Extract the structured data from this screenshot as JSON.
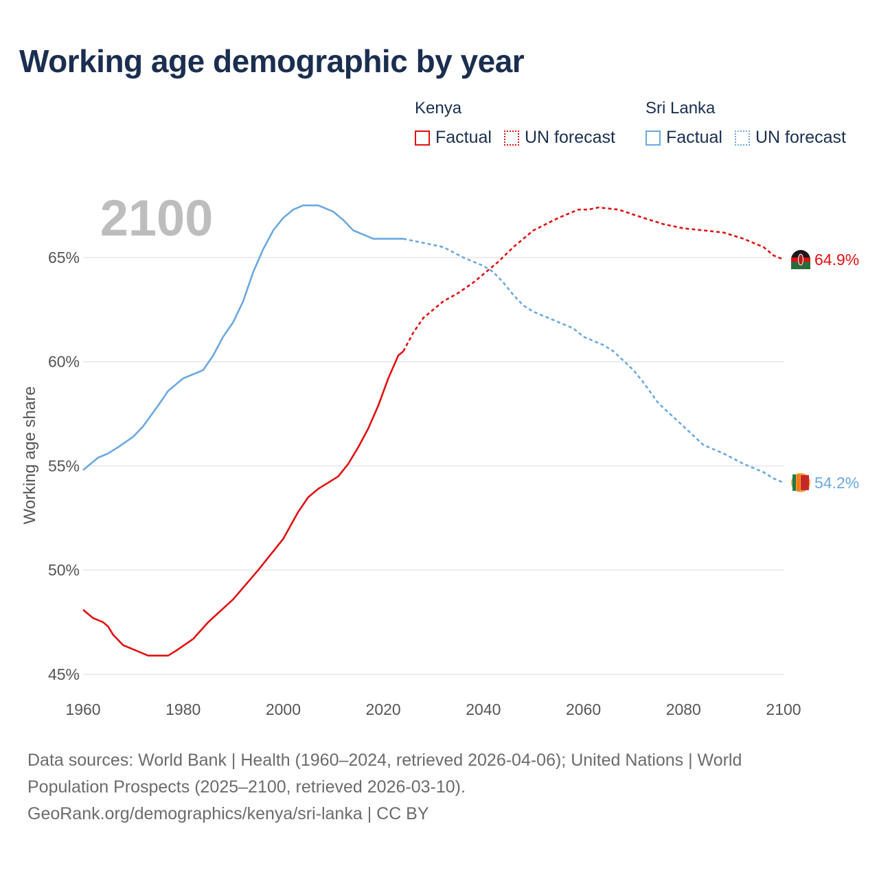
{
  "title": "Working age demographic by year",
  "legend": {
    "kenya": {
      "country": "Kenya",
      "factual": "Factual",
      "forecast": "UN forecast"
    },
    "srilanka": {
      "country": "Sri Lanka",
      "factual": "Factual",
      "forecast": "UN forecast"
    }
  },
  "footer": {
    "line1": "Data sources: World Bank | Health (1960–2024, retrieved 2026-04-06); United Nations | World",
    "line2": "Population Prospects (2025–2100, retrieved 2026-03-10).",
    "line3": "GeoRank.org/demographics/kenya/sri-lanka | CC BY"
  },
  "colors": {
    "kenya": "#e01010",
    "srilanka": "#6aa8e0",
    "grid": "#e6e6e6",
    "axisText": "#555555",
    "yearWatermark": "#bdbdbd"
  },
  "chart_data": {
    "type": "line",
    "title": "Working age demographic by year",
    "xlabel": "",
    "ylabel": "Working age share",
    "year_label": "2100",
    "xlim": [
      1960,
      2100
    ],
    "ylim": [
      45,
      67.8
    ],
    "x_ticks": [
      1960,
      1980,
      2000,
      2020,
      2040,
      2060,
      2080,
      2100
    ],
    "y_ticks": [
      {
        "value": 45,
        "label": "45%"
      },
      {
        "value": 50,
        "label": "50%"
      },
      {
        "value": 55,
        "label": "55%"
      },
      {
        "value": 60,
        "label": "60%"
      },
      {
        "value": 65,
        "label": "65%"
      }
    ],
    "series": [
      {
        "name": "Kenya",
        "end_label": "64.9%",
        "factual_range": [
          1960,
          2024
        ],
        "forecast_range": [
          2024,
          2100
        ],
        "points": [
          [
            1960,
            48.1
          ],
          [
            1962,
            47.7
          ],
          [
            1964,
            47.5
          ],
          [
            1965,
            47.3
          ],
          [
            1966,
            46.9
          ],
          [
            1968,
            46.4
          ],
          [
            1970,
            46.2
          ],
          [
            1973,
            45.9
          ],
          [
            1977,
            45.9
          ],
          [
            1979,
            46.2
          ],
          [
            1982,
            46.7
          ],
          [
            1985,
            47.5
          ],
          [
            1990,
            48.6
          ],
          [
            1995,
            50.0
          ],
          [
            2000,
            51.5
          ],
          [
            2003,
            52.8
          ],
          [
            2005,
            53.5
          ],
          [
            2007,
            53.9
          ],
          [
            2009,
            54.2
          ],
          [
            2011,
            54.5
          ],
          [
            2013,
            55.1
          ],
          [
            2015,
            55.9
          ],
          [
            2017,
            56.8
          ],
          [
            2019,
            57.9
          ],
          [
            2021,
            59.2
          ],
          [
            2023,
            60.3
          ],
          [
            2024,
            60.5
          ],
          [
            2026,
            61.4
          ],
          [
            2028,
            62.1
          ],
          [
            2030,
            62.5
          ],
          [
            2032,
            62.9
          ],
          [
            2035,
            63.3
          ],
          [
            2038,
            63.8
          ],
          [
            2040,
            64.2
          ],
          [
            2043,
            64.8
          ],
          [
            2046,
            65.5
          ],
          [
            2050,
            66.3
          ],
          [
            2055,
            66.9
          ],
          [
            2059,
            67.3
          ],
          [
            2061,
            67.3
          ],
          [
            2063,
            67.4
          ],
          [
            2067,
            67.3
          ],
          [
            2072,
            66.9
          ],
          [
            2076,
            66.6
          ],
          [
            2080,
            66.4
          ],
          [
            2084,
            66.3
          ],
          [
            2088,
            66.2
          ],
          [
            2092,
            65.9
          ],
          [
            2096,
            65.5
          ],
          [
            2098,
            65.1
          ],
          [
            2100,
            64.9
          ]
        ]
      },
      {
        "name": "Sri Lanka",
        "end_label": "54.2%",
        "factual_range": [
          1960,
          2024
        ],
        "forecast_range": [
          2024,
          2100
        ],
        "points": [
          [
            1960,
            54.8
          ],
          [
            1963,
            55.4
          ],
          [
            1965,
            55.6
          ],
          [
            1967,
            55.9
          ],
          [
            1970,
            56.4
          ],
          [
            1972,
            56.9
          ],
          [
            1975,
            57.9
          ],
          [
            1977,
            58.6
          ],
          [
            1980,
            59.2
          ],
          [
            1984,
            59.6
          ],
          [
            1986,
            60.3
          ],
          [
            1988,
            61.2
          ],
          [
            1990,
            61.9
          ],
          [
            1992,
            62.9
          ],
          [
            1994,
            64.3
          ],
          [
            1996,
            65.4
          ],
          [
            1998,
            66.3
          ],
          [
            2000,
            66.9
          ],
          [
            2002,
            67.3
          ],
          [
            2004,
            67.5
          ],
          [
            2007,
            67.5
          ],
          [
            2010,
            67.2
          ],
          [
            2012,
            66.8
          ],
          [
            2014,
            66.3
          ],
          [
            2016,
            66.1
          ],
          [
            2018,
            65.9
          ],
          [
            2020,
            65.9
          ],
          [
            2024,
            65.9
          ],
          [
            2028,
            65.7
          ],
          [
            2032,
            65.5
          ],
          [
            2036,
            65.0
          ],
          [
            2040,
            64.6
          ],
          [
            2042,
            64.3
          ],
          [
            2044,
            63.8
          ],
          [
            2046,
            63.2
          ],
          [
            2048,
            62.7
          ],
          [
            2050,
            62.4
          ],
          [
            2053,
            62.1
          ],
          [
            2058,
            61.6
          ],
          [
            2060,
            61.2
          ],
          [
            2064,
            60.8
          ],
          [
            2066,
            60.5
          ],
          [
            2070,
            59.6
          ],
          [
            2072,
            59.0
          ],
          [
            2075,
            58.0
          ],
          [
            2080,
            56.9
          ],
          [
            2084,
            56.0
          ],
          [
            2088,
            55.6
          ],
          [
            2092,
            55.1
          ],
          [
            2096,
            54.7
          ],
          [
            2098,
            54.4
          ],
          [
            2100,
            54.2
          ]
        ]
      }
    ]
  }
}
